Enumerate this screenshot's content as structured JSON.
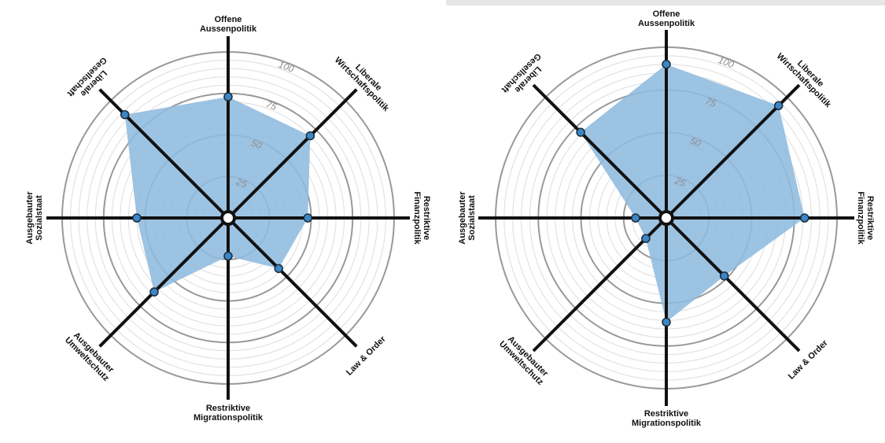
{
  "axes": [
    {
      "label_lines": [
        "Offene",
        "Aussenpolitik"
      ]
    },
    {
      "label_lines": [
        "Liberale",
        "Wirtschaftspolitik"
      ]
    },
    {
      "label_lines": [
        "Restriktive",
        "Finanzpolitik"
      ]
    },
    {
      "label_lines": [
        "Law & Order"
      ]
    },
    {
      "label_lines": [
        "Restriktive",
        "Migrationspolitik"
      ]
    },
    {
      "label_lines": [
        "Ausgebauter",
        "Umweltschutz"
      ]
    },
    {
      "label_lines": [
        "Ausgebauter",
        "Sozialstaat"
      ]
    },
    {
      "label_lines": [
        "Liberale",
        "Gesellschaft"
      ]
    }
  ],
  "ticks": [
    "25",
    "50",
    "75",
    "100"
  ],
  "colors": {
    "fill": "#8fbbdf",
    "point_fill": "#3b86c6",
    "spoke": "#111111",
    "ring_major": "#999999",
    "ring_minor": "#dddddd"
  },
  "chart_data": [
    {
      "type": "radar",
      "title": "",
      "rmax": 100,
      "tick_values": [
        25,
        50,
        75,
        100
      ],
      "categories": [
        "Offene Aussenpolitik",
        "Liberale Wirtschaftspolitik",
        "Restriktive Finanzpolitik",
        "Law & Order",
        "Restriktive Migrationspolitik",
        "Ausgebauter Umweltschutz",
        "Ausgebauter Sozialstaat",
        "Liberale Gesellschaft"
      ],
      "values": [
        73,
        70,
        48,
        43,
        23,
        63,
        55,
        88
      ]
    },
    {
      "type": "radar",
      "title": "",
      "rmax": 100,
      "tick_values": [
        25,
        50,
        75,
        100
      ],
      "categories": [
        "Offene Aussenpolitik",
        "Liberale Wirtschaftspolitik",
        "Restriktive Finanzpolitik",
        "Law & Order",
        "Restriktive Migrationspolitik",
        "Ausgebauter Umweltschutz",
        "Ausgebauter Sozialstaat",
        "Liberale Gesellschaft"
      ],
      "values": [
        90,
        93,
        81,
        48,
        61,
        17,
        18,
        71
      ]
    }
  ]
}
